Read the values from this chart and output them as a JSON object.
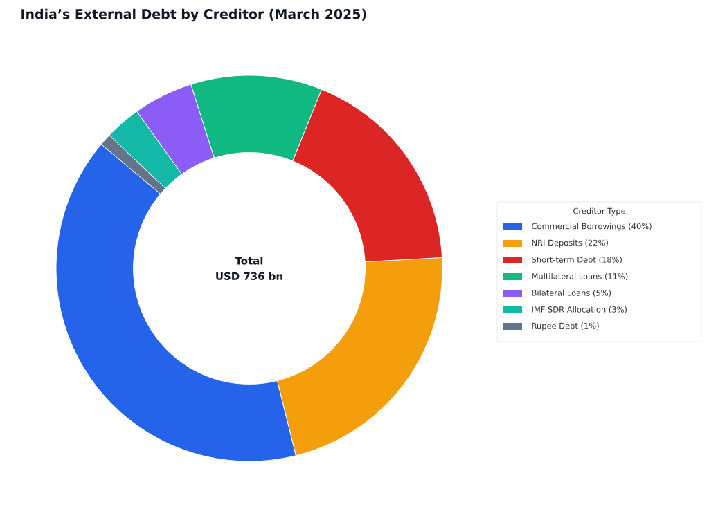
{
  "chart_data": {
    "type": "donut",
    "title": "India’s External Debt by Creditor (March 2025)",
    "categories": [
      "Commercial Borrowings (40%)",
      "NRI Deposits (22%)",
      "Short-term Debt (18%)",
      "Multilateral Loans (11%)",
      "Bilateral Loans (5%)",
      "IMF SDR Allocation (3%)",
      "Rupee Debt (1%)"
    ],
    "values": [
      40,
      22,
      18,
      11,
      5,
      3,
      1
    ],
    "colors": [
      "#2563eb",
      "#f59e0b",
      "#dc2626",
      "#10b981",
      "#8b5cf6",
      "#14b8a6",
      "#64748b"
    ],
    "legend": "right",
    "legend_title": "Creditor Type",
    "annotations": [
      "Total",
      "USD 736 bn"
    ]
  }
}
